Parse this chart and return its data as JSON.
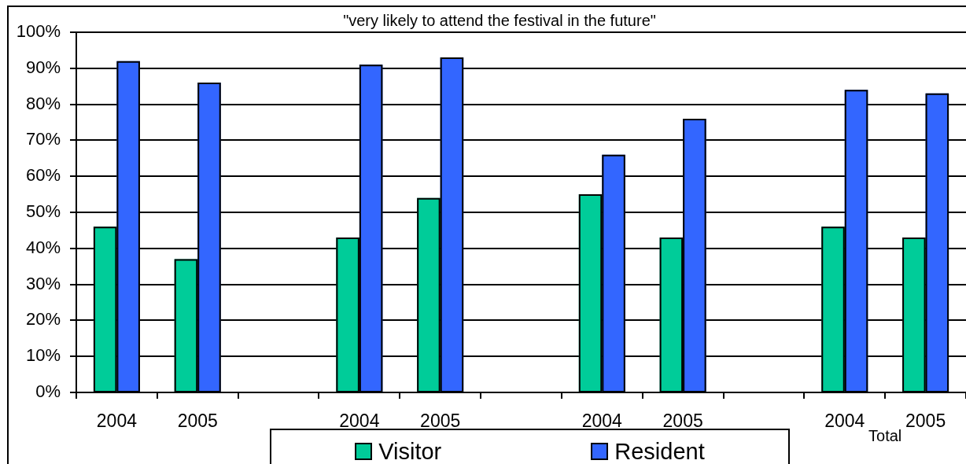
{
  "chart_data": {
    "type": "bar",
    "title": "\"very likely to attend the festival in the future\"",
    "categories": [
      "2004",
      "2005",
      null,
      "2004",
      "2005",
      null,
      "2004",
      "2005",
      null,
      "2004",
      "2005"
    ],
    "series": [
      {
        "name": "Visitor",
        "color": "#00cc99",
        "values": [
          46,
          37,
          null,
          43,
          54,
          null,
          55,
          43,
          null,
          46,
          43
        ]
      },
      {
        "name": "Resident",
        "color": "#3366ff",
        "values": [
          92,
          86,
          null,
          91,
          93,
          null,
          66,
          76,
          null,
          84,
          83
        ]
      }
    ],
    "ylim": [
      0,
      100
    ],
    "yticks": [
      {
        "value": 0,
        "label": "0%"
      },
      {
        "value": 10,
        "label": "10%"
      },
      {
        "value": 20,
        "label": "20%"
      },
      {
        "value": 30,
        "label": "30%"
      },
      {
        "value": 40,
        "label": "40%"
      },
      {
        "value": 50,
        "label": "50%"
      },
      {
        "value": 60,
        "label": "60%"
      },
      {
        "value": 70,
        "label": "70%"
      },
      {
        "value": 80,
        "label": "80%"
      },
      {
        "value": 90,
        "label": "90%"
      },
      {
        "value": 100,
        "label": "100%"
      }
    ],
    "grid": "y",
    "legend": "bottom",
    "annotations": [
      "Total"
    ]
  }
}
